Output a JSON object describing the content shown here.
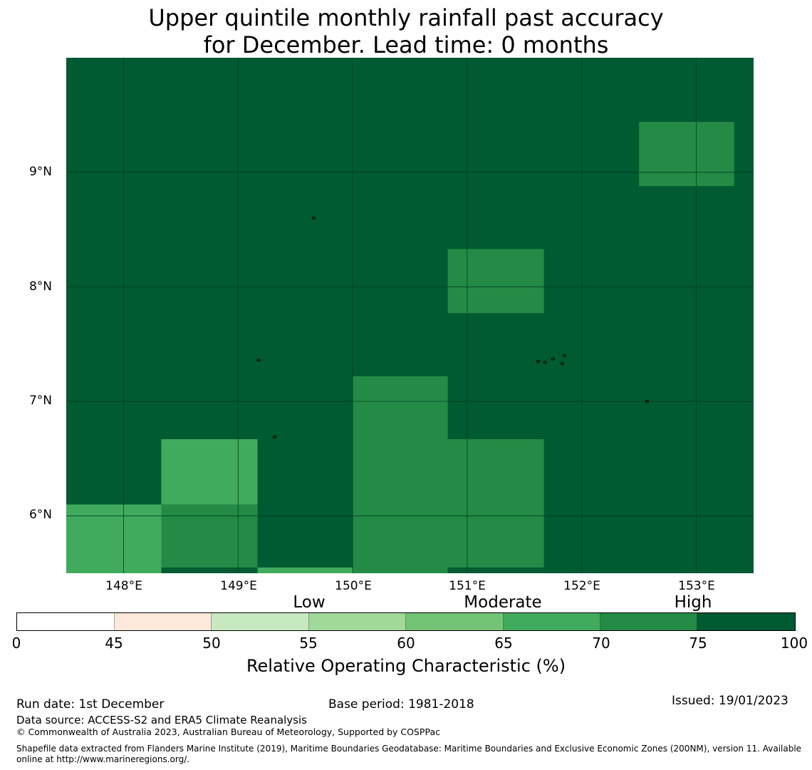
{
  "title": {
    "line1": "Upper quintile monthly rainfall past accuracy",
    "line2": "for December. Lead time: 0 months"
  },
  "map": {
    "background_color": "#005a32",
    "grid_line_color": "#003d22",
    "lon_labels": [
      "148°E",
      "149°E",
      "150°E",
      "151°E",
      "152°E",
      "153°E"
    ],
    "lat_labels": [
      "9°N",
      "8°N",
      "7°N",
      "6°N"
    ],
    "lon_range": [
      147.5,
      153.5
    ],
    "lat_range": [
      5.5,
      10.0
    ],
    "lon_ticks": [
      148,
      149,
      150,
      151,
      152,
      153
    ],
    "lat_ticks": [
      9,
      8,
      7,
      6
    ],
    "cells": [
      {
        "lon0": 147.5,
        "lon1": 148.33,
        "lat0": 5.5,
        "lat1": 6.1,
        "roc": 67,
        "color": "#41ab5d"
      },
      {
        "lon0": 148.33,
        "lon1": 149.17,
        "lat0": 6.1,
        "lat1": 6.67,
        "roc": 67,
        "color": "#41ab5d"
      },
      {
        "lon0": 148.33,
        "lon1": 149.17,
        "lat0": 5.55,
        "lat1": 6.1,
        "roc": 72,
        "color": "#238b45"
      },
      {
        "lon0": 149.17,
        "lon1": 150.0,
        "lat0": 5.5,
        "lat1": 5.55,
        "roc": 67,
        "color": "#41ab5d"
      },
      {
        "lon0": 150.0,
        "lon1": 150.83,
        "lat0": 5.5,
        "lat1": 7.22,
        "roc": 72,
        "color": "#238b45"
      },
      {
        "lon0": 150.83,
        "lon1": 151.67,
        "lat0": 5.55,
        "lat1": 6.67,
        "roc": 72,
        "color": "#238b45"
      },
      {
        "lon0": 150.83,
        "lon1": 151.67,
        "lat0": 7.77,
        "lat1": 8.33,
        "roc": 72,
        "color": "#238b45"
      },
      {
        "lon0": 152.5,
        "lon1": 153.33,
        "lat0": 8.88,
        "lat1": 9.44,
        "roc": 72,
        "color": "#238b45"
      }
    ],
    "islands": [
      {
        "lon": 149.66,
        "lat": 8.6
      },
      {
        "lon": 149.18,
        "lat": 7.36
      },
      {
        "lon": 149.32,
        "lat": 6.69
      },
      {
        "lon": 151.62,
        "lat": 7.35
      },
      {
        "lon": 151.68,
        "lat": 7.34
      },
      {
        "lon": 151.75,
        "lat": 7.37
      },
      {
        "lon": 151.85,
        "lat": 7.4
      },
      {
        "lon": 151.83,
        "lat": 7.33
      },
      {
        "lon": 152.57,
        "lat": 7.0
      }
    ]
  },
  "categories": [
    "Low",
    "Moderate",
    "High"
  ],
  "colorbar": {
    "ticks": [
      "0",
      "45",
      "50",
      "55",
      "60",
      "65",
      "70",
      "75",
      "100"
    ],
    "colors": [
      "#ffffff",
      "#fee8dc",
      "#c7e9c0",
      "#a1d99b",
      "#74c476",
      "#41ab5d",
      "#238b45",
      "#005a32"
    ],
    "label": "Relative Operating Characteristic (%)"
  },
  "footer": {
    "run_date": "Run date: 1st December",
    "base_period": "Base period: 1981-2018",
    "issued": "Issued: 19/01/2023",
    "data_source": "Data source: ACCESS-S2 and ERA5 Climate Reanalysis",
    "copyright": "© Commonwealth of Australia 2023, Australian Bureau of Meteorology, Supported by COSPPac",
    "shapefile_line1": "Shapefile data extracted from Flanders Marine Institute (2019), Maritime Boundaries Geodatabase: Maritime Boundaries and Exclusive Economic Zones (200NM), version 11. Available",
    "shapefile_line2": "online at http://www.marineregions.org/."
  }
}
